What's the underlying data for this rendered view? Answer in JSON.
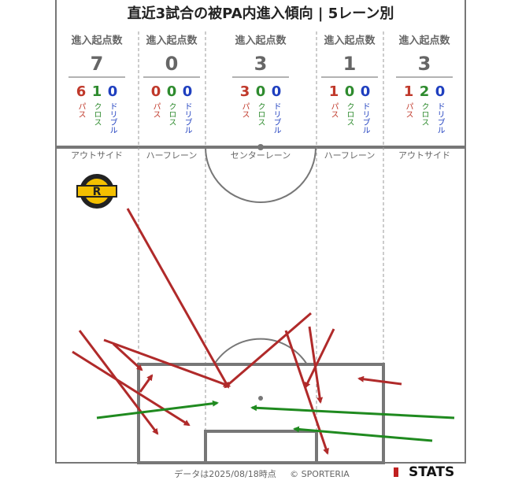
{
  "title": "直近3試合の被PA内進入傾向 | 5レーン別",
  "stat_label": "進入起点数",
  "kinds": [
    "パス",
    "クロス",
    "ドリブル"
  ],
  "lanes": [
    {
      "name": "アウトサイド",
      "total": 7,
      "counts": [
        6,
        1,
        0
      ]
    },
    {
      "name": "ハーフレーン",
      "total": 0,
      "counts": [
        0,
        0,
        0
      ]
    },
    {
      "name": "センターレーン",
      "total": 3,
      "counts": [
        3,
        0,
        0
      ]
    },
    {
      "name": "ハーフレーン",
      "total": 1,
      "counts": [
        1,
        0,
        0
      ]
    },
    {
      "name": "アウトサイド",
      "total": 3,
      "counts": [
        1,
        2,
        0
      ]
    }
  ],
  "footer": {
    "note": "データは2025/08/18時点",
    "copyright": "© SPORTERIA",
    "brand": "STATS"
  }
}
